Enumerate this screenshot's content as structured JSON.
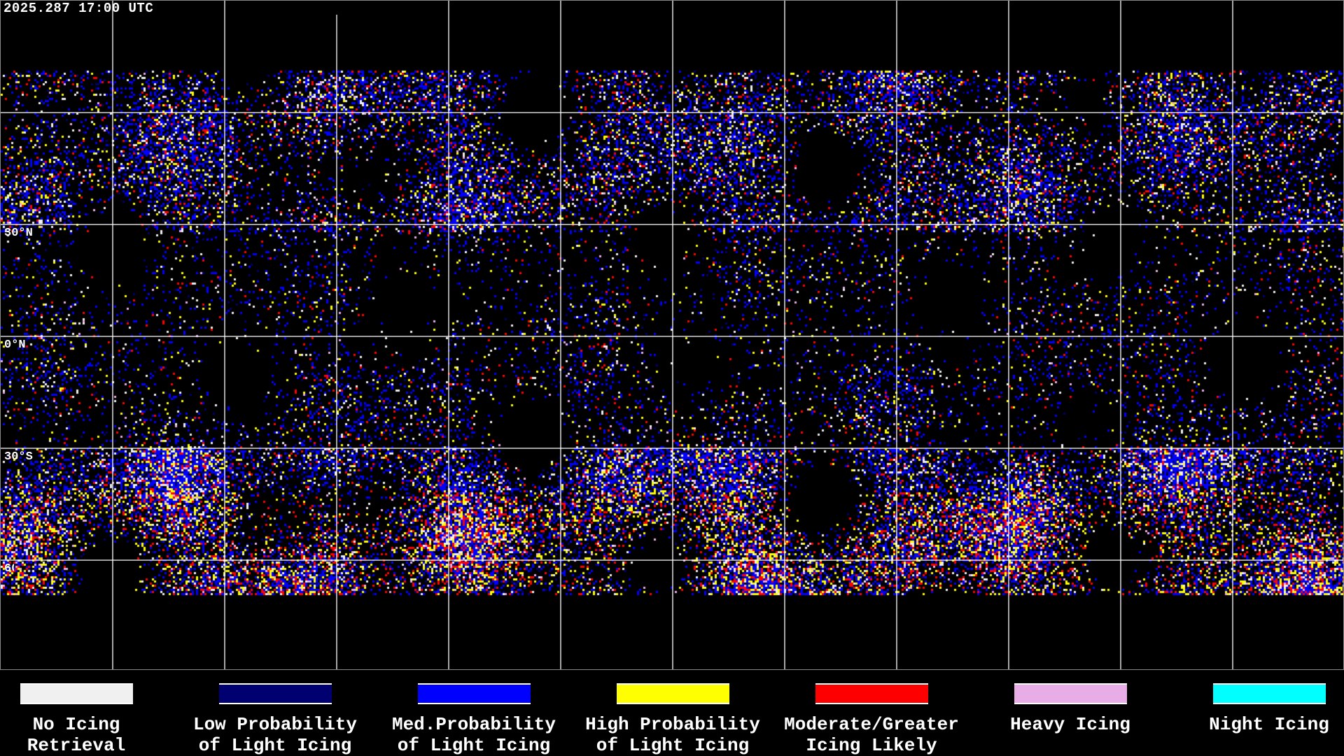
{
  "timestamp": "2025.287 17:00 UTC",
  "lat_labels": [
    "30°N",
    "0°N",
    "30°S",
    "60°S"
  ],
  "colors": {
    "no_icing": "#f0f0f0",
    "low": "#000070",
    "med": "#0000ff",
    "high": "#ffff00",
    "moderate": "#ff0000",
    "heavy": "#e8acE6",
    "night": "#00ffff",
    "coastline": "#ffffff",
    "grid": "#ffffff",
    "background": "#000000"
  },
  "legend": [
    {
      "line1": "No Icing",
      "line2": "Retrieval",
      "color": "#f0f0f0"
    },
    {
      "line1": "Low Probability",
      "line2": "of Light Icing",
      "color": "#000070"
    },
    {
      "line1": "Med.Probability",
      "line2": "of Light Icing",
      "color": "#0000ff"
    },
    {
      "line1": "High Probability",
      "line2": "of Light Icing",
      "color": "#ffff00"
    },
    {
      "line1": "Moderate/Greater",
      "line2": "Icing Likely",
      "color": "#ff0000"
    },
    {
      "line1": "Heavy Icing",
      "line2": "",
      "color": "#e8ace6"
    },
    {
      "line1": "Night Icing",
      "line2": "",
      "color": "#00ffff"
    }
  ]
}
